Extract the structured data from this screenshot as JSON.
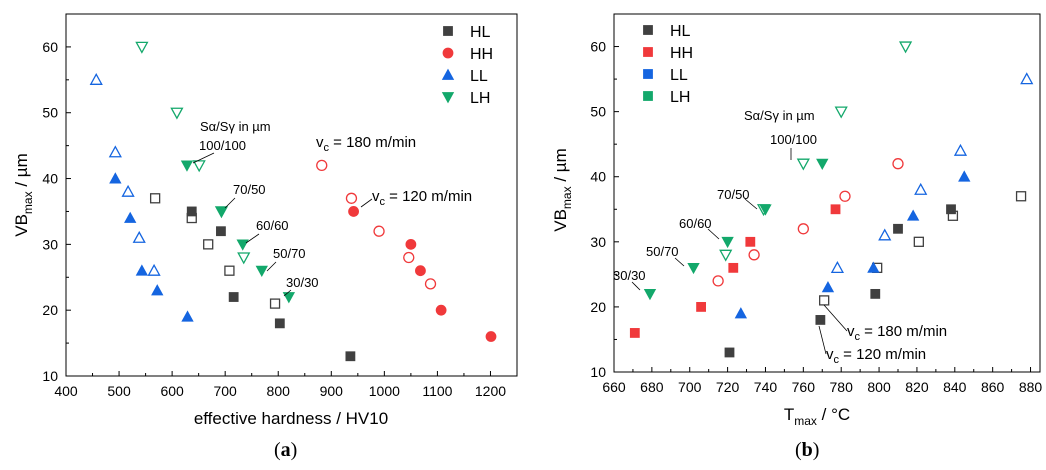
{
  "colors": {
    "HL": "#404040",
    "HH": "#f0393b",
    "LL": "#1565e0",
    "LH": "#13a86b"
  },
  "chart_data": [
    {
      "type": "scatter",
      "panel": "(a)",
      "panel_text": "a",
      "xlabel": "effective hardness / HV10",
      "ylabel_main": "VB",
      "ylabel_sub": "max",
      "ylabel_unit": " / µm",
      "xlim": [
        400,
        1250
      ],
      "ylim": [
        10,
        65
      ],
      "xticks": [
        "400",
        "500",
        "600",
        "700",
        "800",
        "900",
        "1000",
        "1100",
        "1200"
      ],
      "yticks": [
        "10",
        "20",
        "30",
        "40",
        "50",
        "60"
      ],
      "legend_position": "top-right",
      "grid": false,
      "series": [
        {
          "name": "HL",
          "marker": "square",
          "filled": [
            [
              637,
              35
            ],
            [
              692,
              32
            ],
            [
              716,
              22
            ],
            [
              803,
              18
            ],
            [
              936,
              13
            ]
          ],
          "open": [
            [
              568,
              37
            ],
            [
              637,
              34
            ],
            [
              668,
              30
            ],
            [
              708,
              26
            ],
            [
              794,
              21
            ]
          ]
        },
        {
          "name": "HH",
          "marker": "circle",
          "filled": [
            [
              942,
              35
            ],
            [
              1050,
              30
            ],
            [
              1068,
              26
            ],
            [
              1107,
              20
            ],
            [
              1201,
              16
            ]
          ],
          "open": [
            [
              882,
              42
            ],
            [
              938,
              37
            ],
            [
              990,
              32
            ],
            [
              1046,
              28
            ],
            [
              1087,
              24
            ]
          ]
        },
        {
          "name": "LL",
          "marker": "triangle-up",
          "filled": [
            [
              493,
              40
            ],
            [
              521,
              34
            ],
            [
              543,
              26
            ],
            [
              572,
              23
            ],
            [
              629,
              19
            ]
          ],
          "open": [
            [
              457,
              55
            ],
            [
              493,
              44
            ],
            [
              517,
              38
            ],
            [
              538,
              31
            ],
            [
              566,
              26
            ]
          ]
        },
        {
          "name": "LH",
          "marker": "triangle-down",
          "filled": [
            [
              628,
              42
            ],
            [
              693,
              35
            ],
            [
              733,
              30
            ],
            [
              769,
              26
            ],
            [
              820,
              22
            ]
          ],
          "open": [
            [
              543,
              60
            ],
            [
              609,
              50
            ],
            [
              651,
              42
            ],
            [
              693,
              35
            ],
            [
              735,
              28
            ]
          ]
        }
      ],
      "annotations": {
        "title": "Sα/Sγ in µm",
        "groups": [
          "100/100",
          "70/50",
          "60/60",
          "50/70",
          "30/30"
        ],
        "vc180": {
          "main": "v",
          "sub": "c",
          "rest": " = 180 m/min"
        },
        "vc120": {
          "main": "v",
          "sub": "c",
          "rest": " = 120 m/min"
        }
      }
    },
    {
      "type": "scatter",
      "panel": "(b)",
      "panel_text": "b",
      "xlabel_main": "T",
      "xlabel_sub": "max",
      "xlabel_unit": " / °C",
      "ylabel_main": "VB",
      "ylabel_sub": "max",
      "ylabel_unit": " / µm",
      "xlim": [
        660,
        885
      ],
      "ylim": [
        10,
        65
      ],
      "xticks": [
        "660",
        "680",
        "700",
        "720",
        "740",
        "760",
        "780",
        "800",
        "820",
        "840",
        "860",
        "880"
      ],
      "yticks": [
        "10",
        "20",
        "30",
        "40",
        "50",
        "60"
      ],
      "legend_position": "top-left",
      "grid": false,
      "series": [
        {
          "name": "HL",
          "marker": "square",
          "filled": [
            [
              721,
              13
            ],
            [
              769,
              18
            ],
            [
              798,
              22
            ],
            [
              810,
              32
            ],
            [
              838,
              35
            ]
          ],
          "open": [
            [
              771,
              21
            ],
            [
              799,
              26
            ],
            [
              821,
              30
            ],
            [
              839,
              34
            ],
            [
              875,
              37
            ]
          ]
        },
        {
          "name": "HH",
          "marker": "circle-or-square",
          "filled": [
            [
              671,
              16
            ],
            [
              706,
              20
            ],
            [
              723,
              26
            ],
            [
              732,
              30
            ],
            [
              777,
              35
            ]
          ],
          "open": [
            [
              715,
              24
            ],
            [
              734,
              28
            ],
            [
              760,
              32
            ],
            [
              782,
              37
            ],
            [
              810,
              42
            ]
          ]
        },
        {
          "name": "LL",
          "marker": "triangle-up",
          "filled": [
            [
              727,
              19
            ],
            [
              773,
              23
            ],
            [
              797,
              26
            ],
            [
              818,
              34
            ],
            [
              845,
              40
            ]
          ],
          "open": [
            [
              778,
              26
            ],
            [
              803,
              31
            ],
            [
              822,
              38
            ],
            [
              843,
              44
            ],
            [
              878,
              55
            ]
          ]
        },
        {
          "name": "LH",
          "marker": "triangle-down",
          "filled": [
            [
              679,
              22
            ],
            [
              702,
              26
            ],
            [
              720,
              30
            ],
            [
              740,
              35
            ],
            [
              770,
              42
            ]
          ],
          "open": [
            [
              719,
              28
            ],
            [
              739,
              35
            ],
            [
              760,
              42
            ],
            [
              780,
              50
            ],
            [
              814,
              60
            ]
          ]
        }
      ],
      "annotations": {
        "title": "Sα/Sγ in µm",
        "groups": [
          "100/100",
          "70/50",
          "60/60",
          "50/70",
          "30/30"
        ],
        "vc180": {
          "main": "v",
          "sub": "c",
          "rest": " = 180 m/min"
        },
        "vc120": {
          "main": "v",
          "sub": "c",
          "rest": " = 120 m/min"
        }
      }
    }
  ]
}
